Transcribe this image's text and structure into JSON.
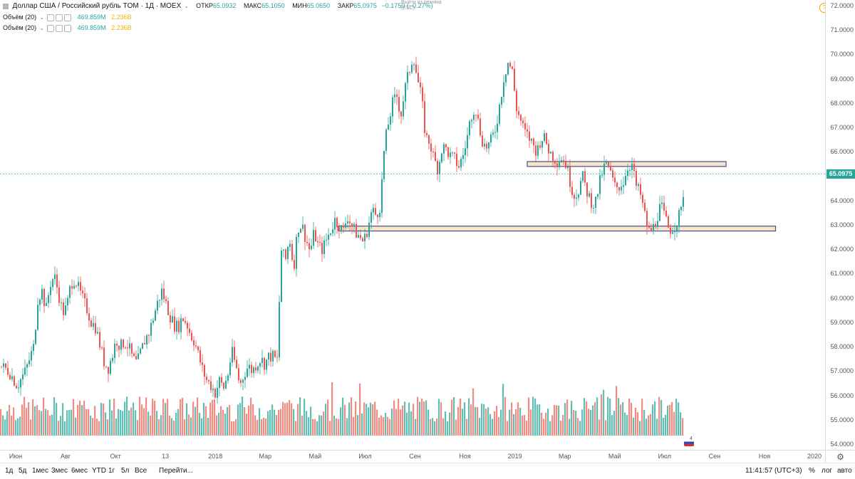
{
  "symbol": {
    "title": "Доллар США / Российский рубль TOM · 1Д · MOEX",
    "chevron": "⌄",
    "open_label": "ОТКР",
    "open_value": "65.0932",
    "high_label": "МАКС",
    "high_value": "65.1050",
    "low_label": "МИН",
    "low_value": "65.0650",
    "close_label": "ЗАКР",
    "close_value": "65.0975",
    "change": "−0.1750 (−0.27%)"
  },
  "volume_legend": [
    {
      "name": "Объём (20)",
      "value_a": "469.859M",
      "value_b": "2.236B"
    },
    {
      "name": "Объём (20)",
      "value_a": "469.859M",
      "value_b": "2.236B"
    }
  ],
  "tooltip": {
    "line1": "Выйти из режима",
    "line2": "(ESC)"
  },
  "alert_icon_text": "?",
  "event_badge": "4",
  "price_scale": {
    "ticks": [
      "72.0000",
      "71.0000",
      "70.0000",
      "69.0000",
      "68.0000",
      "67.0000",
      "66.0000",
      "65.0000",
      "64.0000",
      "63.0000",
      "62.0000",
      "61.0000",
      "60.0000",
      "59.0000",
      "58.0000",
      "57.0000",
      "56.0000",
      "55.0000",
      "54.0000"
    ],
    "last_price": "65.0975"
  },
  "time_axis": {
    "labels": [
      "Июн",
      "Авг",
      "Окт",
      "13",
      "2018",
      "Мар",
      "Май",
      "Июл",
      "Сен",
      "Ноя",
      "2019",
      "Мар",
      "Май",
      "Июл",
      "Сен",
      "Ноя",
      "2020"
    ]
  },
  "bottom_bar": {
    "ranges": [
      "1д",
      "5д",
      "1мес",
      "3мес",
      "6мес",
      "YTD",
      "1г",
      "5л",
      "Все"
    ],
    "goto": "Перейти...",
    "clock": "11:41:57 (UTC+3)",
    "percent": "%",
    "log": "лог",
    "auto": "авто"
  },
  "colors": {
    "up": "#26a69a",
    "down": "#ef5350",
    "vol_up": "#5fbfb3",
    "vol_down": "#f28b82",
    "zone_fill": "#f5e6c8",
    "zone_border": "#4a4a9a",
    "price_line": "#26a69a"
  },
  "chart_data": {
    "type": "candlestick",
    "x_range": [
      "2017-05",
      "2020-01"
    ],
    "y_range": [
      54,
      72
    ],
    "price_path": [
      [
        0,
        57.2
      ],
      [
        0.01,
        57.0
      ],
      [
        0.02,
        56.4
      ],
      [
        0.03,
        57.0
      ],
      [
        0.04,
        58.0
      ],
      [
        0.045,
        60.0
      ],
      [
        0.05,
        60.3
      ],
      [
        0.055,
        59.5
      ],
      [
        0.06,
        60.6
      ],
      [
        0.065,
        60.9
      ],
      [
        0.07,
        60.2
      ],
      [
        0.075,
        59.4
      ],
      [
        0.08,
        59.6
      ],
      [
        0.085,
        60.6
      ],
      [
        0.09,
        60.8
      ],
      [
        0.095,
        60.3
      ],
      [
        0.1,
        59.9
      ],
      [
        0.105,
        59.5
      ],
      [
        0.11,
        59.0
      ],
      [
        0.115,
        58.8
      ],
      [
        0.12,
        58.1
      ],
      [
        0.125,
        57.4
      ],
      [
        0.13,
        57.1
      ],
      [
        0.135,
        57.6
      ],
      [
        0.14,
        58.3
      ],
      [
        0.145,
        58.0
      ],
      [
        0.15,
        58.2
      ],
      [
        0.155,
        58.0
      ],
      [
        0.16,
        57.5
      ],
      [
        0.165,
        57.3
      ],
      [
        0.17,
        57.8
      ],
      [
        0.175,
        58.3
      ],
      [
        0.18,
        58.6
      ],
      [
        0.185,
        59.2
      ],
      [
        0.19,
        59.8
      ],
      [
        0.195,
        60.3
      ],
      [
        0.2,
        59.8
      ],
      [
        0.205,
        59.3
      ],
      [
        0.21,
        58.9
      ],
      [
        0.215,
        58.8
      ],
      [
        0.22,
        59.2
      ],
      [
        0.225,
        59.0
      ],
      [
        0.23,
        58.5
      ],
      [
        0.235,
        58.2
      ],
      [
        0.24,
        57.6
      ],
      [
        0.245,
        57.0
      ],
      [
        0.25,
        56.6
      ],
      [
        0.255,
        56.4
      ],
      [
        0.26,
        56.1
      ],
      [
        0.265,
        56.6
      ],
      [
        0.27,
        56.3
      ],
      [
        0.275,
        56.8
      ],
      [
        0.28,
        57.8
      ],
      [
        0.285,
        57.2
      ],
      [
        0.29,
        56.4
      ],
      [
        0.295,
        56.9
      ],
      [
        0.3,
        57.2
      ],
      [
        0.305,
        57.0
      ],
      [
        0.31,
        57.3
      ],
      [
        0.315,
        57.5
      ],
      [
        0.32,
        57.3
      ],
      [
        0.325,
        57.6
      ],
      [
        0.33,
        57.6
      ],
      [
        0.335,
        57.4
      ],
      [
        0.34,
        62.0
      ],
      [
        0.345,
        61.5
      ],
      [
        0.35,
        62.5
      ],
      [
        0.355,
        61.2
      ],
      [
        0.36,
        62.9
      ],
      [
        0.365,
        63.0
      ],
      [
        0.37,
        62.4
      ],
      [
        0.375,
        61.9
      ],
      [
        0.38,
        62.7
      ],
      [
        0.385,
        62.1
      ],
      [
        0.39,
        62.0
      ],
      [
        0.395,
        62.4
      ],
      [
        0.4,
        62.8
      ],
      [
        0.405,
        63.2
      ],
      [
        0.41,
        63.0
      ],
      [
        0.415,
        62.7
      ],
      [
        0.42,
        63.4
      ],
      [
        0.425,
        63.0
      ],
      [
        0.43,
        62.7
      ],
      [
        0.435,
        62.5
      ],
      [
        0.44,
        62.3
      ],
      [
        0.445,
        62.9
      ],
      [
        0.45,
        63.6
      ],
      [
        0.455,
        63.4
      ],
      [
        0.46,
        63.8
      ],
      [
        0.465,
        66.2
      ],
      [
        0.47,
        67.2
      ],
      [
        0.475,
        68.0
      ],
      [
        0.48,
        68.3
      ],
      [
        0.485,
        67.5
      ],
      [
        0.49,
        68.6
      ],
      [
        0.495,
        69.3
      ],
      [
        0.5,
        70.0
      ],
      [
        0.505,
        69.0
      ],
      [
        0.51,
        68.2
      ],
      [
        0.515,
        66.6
      ],
      [
        0.52,
        66.4
      ],
      [
        0.525,
        65.7
      ],
      [
        0.53,
        65.3
      ],
      [
        0.535,
        66.2
      ],
      [
        0.54,
        66.1
      ],
      [
        0.545,
        65.8
      ],
      [
        0.55,
        65.7
      ],
      [
        0.555,
        65.4
      ],
      [
        0.56,
        65.8
      ],
      [
        0.565,
        66.5
      ],
      [
        0.57,
        67.5
      ],
      [
        0.575,
        67.9
      ],
      [
        0.58,
        67.0
      ],
      [
        0.585,
        66.3
      ],
      [
        0.59,
        66.2
      ],
      [
        0.595,
        66.5
      ],
      [
        0.6,
        67.0
      ],
      [
        0.605,
        68.0
      ],
      [
        0.61,
        69.1
      ],
      [
        0.615,
        69.7
      ],
      [
        0.62,
        69.3
      ],
      [
        0.625,
        67.8
      ],
      [
        0.63,
        67.3
      ],
      [
        0.635,
        66.8
      ],
      [
        0.64,
        66.6
      ],
      [
        0.645,
        66.3
      ],
      [
        0.65,
        66.0
      ],
      [
        0.655,
        66.6
      ],
      [
        0.66,
        66.5
      ],
      [
        0.665,
        66.0
      ],
      [
        0.67,
        65.8
      ],
      [
        0.675,
        65.6
      ],
      [
        0.68,
        65.8
      ],
      [
        0.685,
        65.5
      ],
      [
        0.69,
        64.8
      ],
      [
        0.695,
        64.2
      ],
      [
        0.7,
        64.4
      ],
      [
        0.705,
        65.0
      ],
      [
        0.71,
        64.4
      ],
      [
        0.715,
        64.0
      ],
      [
        0.72,
        63.8
      ],
      [
        0.725,
        64.6
      ],
      [
        0.73,
        65.3
      ],
      [
        0.735,
        65.5
      ],
      [
        0.74,
        65.0
      ],
      [
        0.745,
        64.5
      ],
      [
        0.75,
        64.6
      ],
      [
        0.755,
        64.8
      ],
      [
        0.76,
        65.4
      ],
      [
        0.765,
        65.5
      ],
      [
        0.77,
        64.6
      ],
      [
        0.775,
        64.3
      ],
      [
        0.78,
        63.5
      ],
      [
        0.785,
        62.7
      ],
      [
        0.79,
        62.8
      ],
      [
        0.795,
        63.3
      ],
      [
        0.8,
        63.8
      ],
      [
        0.805,
        63.3
      ],
      [
        0.81,
        62.8
      ],
      [
        0.815,
        62.9
      ],
      [
        0.82,
        63.2
      ],
      [
        0.825,
        63.6
      ],
      [
        0.83,
        65.2
      ]
    ],
    "zones": [
      {
        "x0": 0.639,
        "x1": 0.88,
        "y0": 65.4,
        "y1": 65.6
      },
      {
        "x0": 0.41,
        "x1": 0.94,
        "y0": 62.75,
        "y1": 62.95
      }
    ],
    "volume_scale_max": 56
  }
}
